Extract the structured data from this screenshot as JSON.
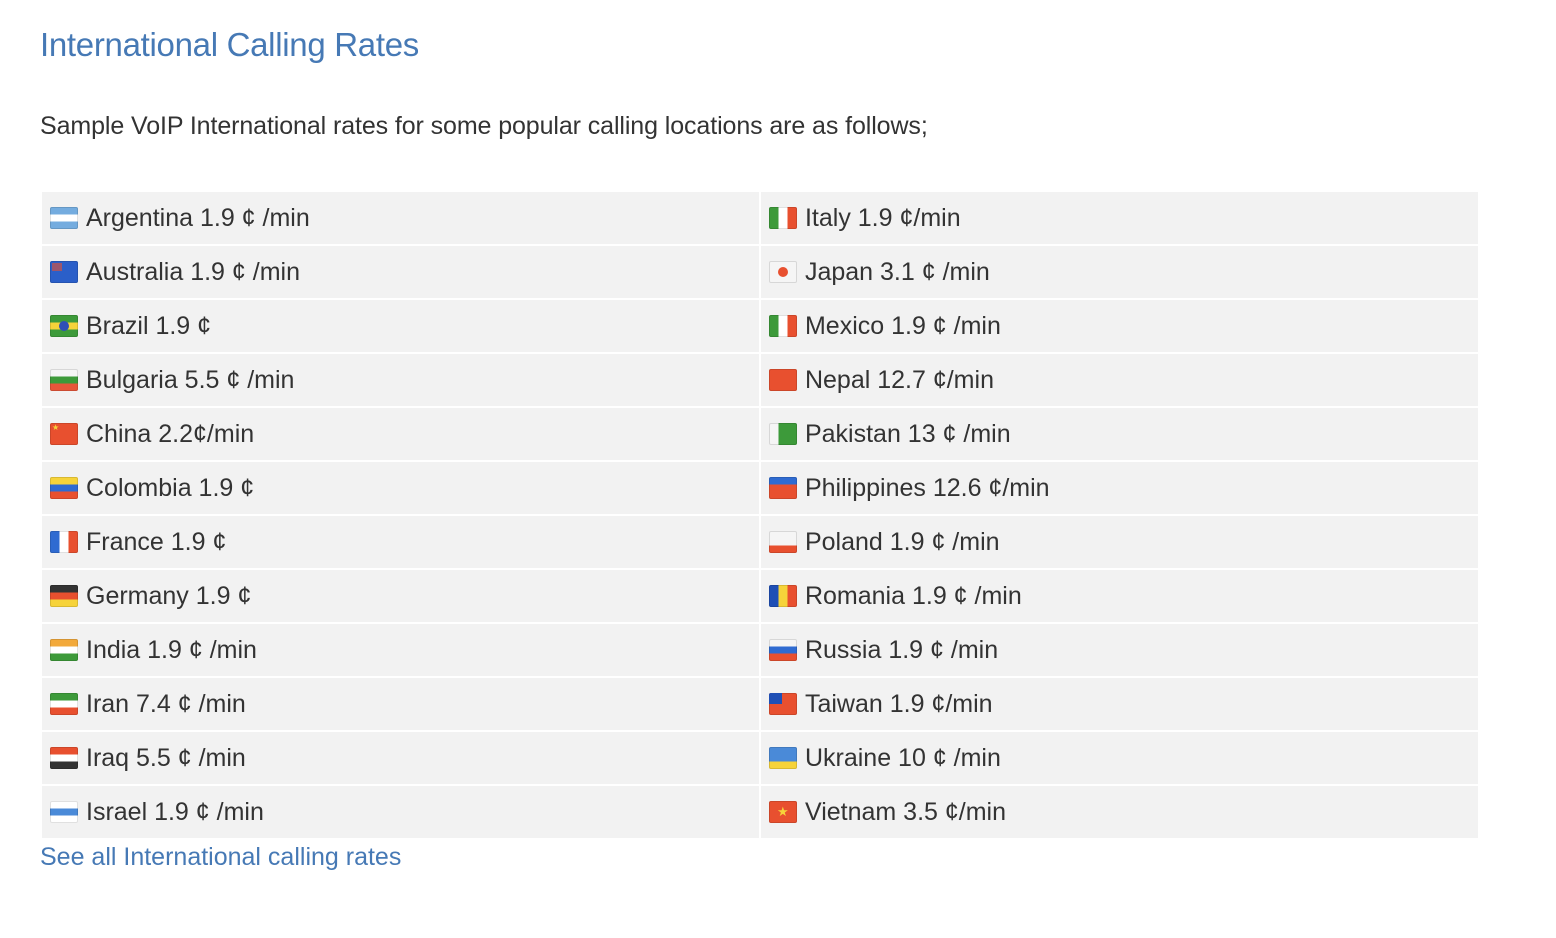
{
  "header": {
    "title": "International Calling Rates",
    "intro": "Sample VoIP International rates for some popular calling locations are as follows;"
  },
  "rates": {
    "left": [
      {
        "country": "Argentina",
        "rate": "Argentina 1.9 ¢ /min",
        "flag": "argentina-flag",
        "colors": [
          "#74acdf",
          "#ffffff",
          "#74acdf"
        ]
      },
      {
        "country": "Australia",
        "rate": "Australia 1.9 ¢ /min",
        "flag": "australia-flag",
        "colors": [
          "#2b5fc9",
          "#2b5fc9",
          "#2b5fc9"
        ]
      },
      {
        "country": "Brazil",
        "rate": "Brazil 1.9 ¢",
        "flag": "brazil-flag",
        "colors": [
          "#3d9a3a",
          "#f6d33a",
          "#3d9a3a"
        ]
      },
      {
        "country": "Bulgaria",
        "rate": "Bulgaria 5.5 ¢ /min",
        "flag": "bulgaria-flag",
        "colors": [
          "#f5f5f5",
          "#3d9a3a",
          "#e8563a"
        ]
      },
      {
        "country": "China",
        "rate": "China 2.2¢/min",
        "flag": "china-flag",
        "colors": [
          "#e8502f",
          "#e8502f",
          "#e8502f"
        ]
      },
      {
        "country": "Colombia",
        "rate": "Colombia 1.9 ¢",
        "flag": "colombia-flag",
        "colors": [
          "#f6d33a",
          "#2f6bd1",
          "#e8502f"
        ]
      },
      {
        "country": "France",
        "rate": "France 1.9 ¢",
        "flag": "france-flag",
        "colors": [
          "#2f6bd1",
          "#ffffff",
          "#e8502f"
        ],
        "vertical": true
      },
      {
        "country": "Germany",
        "rate": "Germany 1.9 ¢",
        "flag": "germany-flag",
        "colors": [
          "#333333",
          "#e8502f",
          "#f6d33a"
        ]
      },
      {
        "country": "India",
        "rate": "India 1.9 ¢ /min",
        "flag": "india-flag",
        "colors": [
          "#f2a93b",
          "#ffffff",
          "#3d9a3a"
        ]
      },
      {
        "country": "Iran",
        "rate": "Iran 7.4 ¢ /min",
        "flag": "iran-flag",
        "colors": [
          "#3d9a3a",
          "#ffffff",
          "#e8502f"
        ]
      },
      {
        "country": "Iraq",
        "rate": "Iraq 5.5 ¢ /min",
        "flag": "iraq-flag",
        "colors": [
          "#e8502f",
          "#ffffff",
          "#333333"
        ]
      },
      {
        "country": "Israel",
        "rate": "Israel 1.9 ¢ /min",
        "flag": "israel-flag",
        "colors": [
          "#ffffff",
          "#4a8ad8",
          "#ffffff"
        ]
      }
    ],
    "right": [
      {
        "country": "Italy",
        "rate": "Italy 1.9 ¢/min",
        "flag": "italy-flag",
        "colors": [
          "#3d9a3a",
          "#ffffff",
          "#e8502f"
        ],
        "vertical": true
      },
      {
        "country": "Japan",
        "rate": "Japan 3.1 ¢ /min",
        "flag": "japan-flag",
        "colors": [
          "#f5f5f5",
          "#f5f5f5",
          "#f5f5f5"
        ]
      },
      {
        "country": "Mexico",
        "rate": "Mexico 1.9 ¢ /min",
        "flag": "mexico-flag",
        "colors": [
          "#3d9a3a",
          "#ffffff",
          "#e8502f"
        ],
        "vertical": true
      },
      {
        "country": "Nepal",
        "rate": "Nepal 12.7 ¢/min",
        "flag": "nepal-flag",
        "colors": [
          "#e8502f",
          "#e8502f",
          "#e8502f"
        ]
      },
      {
        "country": "Pakistan",
        "rate": "Pakistan 13 ¢ /min",
        "flag": "pakistan-flag",
        "colors": [
          "#f5f5f5",
          "#3d9a3a",
          "#3d9a3a"
        ],
        "vertical": true
      },
      {
        "country": "Philippines",
        "rate": "Philippines 12.6 ¢/min",
        "flag": "philippines-flag",
        "colors": [
          "#2f6bd1",
          "#e8502f",
          "#e8502f"
        ]
      },
      {
        "country": "Poland",
        "rate": "Poland 1.9 ¢ /min",
        "flag": "poland-flag",
        "colors": [
          "#f5f5f5",
          "#f5f5f5",
          "#e8502f"
        ]
      },
      {
        "country": "Romania",
        "rate": "Romania 1.9 ¢ /min",
        "flag": "romania-flag",
        "colors": [
          "#1f4fb5",
          "#f6d33a",
          "#e8502f"
        ],
        "vertical": true
      },
      {
        "country": "Russia",
        "rate": "Russia 1.9 ¢ /min",
        "flag": "russia-flag",
        "colors": [
          "#f5f5f5",
          "#2f6bd1",
          "#e8502f"
        ]
      },
      {
        "country": "Taiwan",
        "rate": "Taiwan 1.9 ¢/min",
        "flag": "taiwan-flag",
        "colors": [
          "#e8502f",
          "#e8502f",
          "#e8502f"
        ]
      },
      {
        "country": "Ukraine",
        "rate": "Ukraine 10 ¢ /min",
        "flag": "ukraine-flag",
        "colors": [
          "#4a8ad8",
          "#4a8ad8",
          "#f6d33a"
        ]
      },
      {
        "country": "Vietnam",
        "rate": "Vietnam 3.5 ¢/min",
        "flag": "vietnam-flag",
        "colors": [
          "#e8502f",
          "#e8502f",
          "#e8502f"
        ]
      }
    ]
  },
  "footer": {
    "see_all_label": "See all International calling rates"
  },
  "theme": {
    "accent": "#4679b5",
    "text": "#333333",
    "cell_bg": "#f2f2f2"
  }
}
